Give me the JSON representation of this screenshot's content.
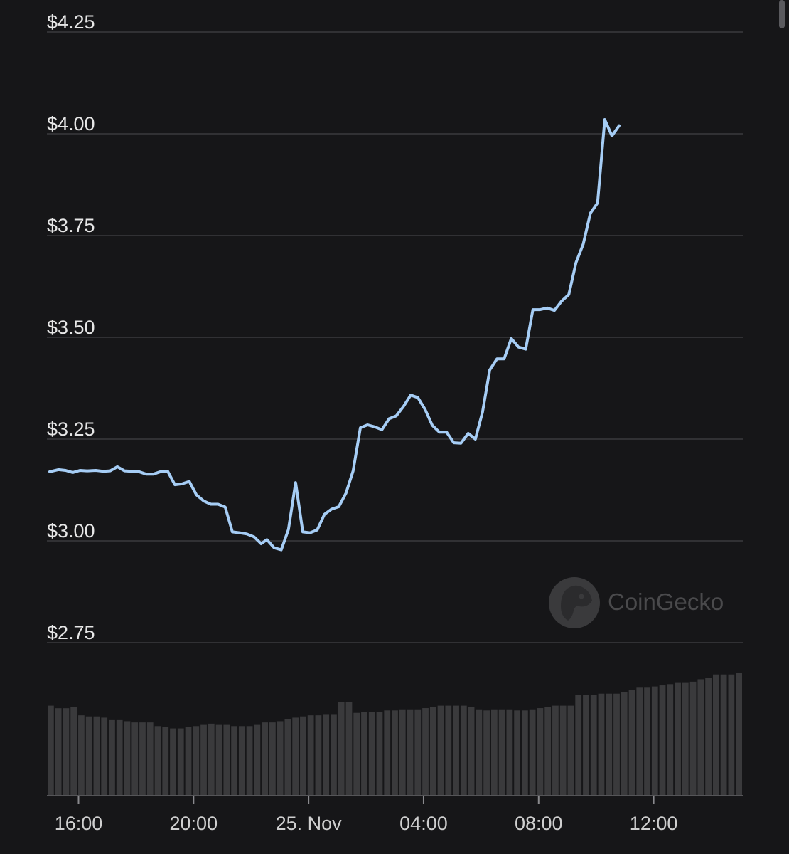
{
  "chart_data": {
    "type": "line",
    "y_axis": {
      "ticks": [
        {
          "value": 4.25,
          "label": "$4.25"
        },
        {
          "value": 4.0,
          "label": "$4.00"
        },
        {
          "value": 3.75,
          "label": "$3.75"
        },
        {
          "value": 3.5,
          "label": "$3.50"
        },
        {
          "value": 3.25,
          "label": "$3.25"
        },
        {
          "value": 3.0,
          "label": "$3.00"
        },
        {
          "value": 2.75,
          "label": "$2.75"
        }
      ],
      "range": [
        2.75,
        4.25
      ],
      "grid": true
    },
    "x_axis": {
      "range_hours": [
        14.9,
        39.1
      ],
      "ticks": [
        {
          "value": 16,
          "label": "16:00"
        },
        {
          "value": 20,
          "label": "20:00"
        },
        {
          "value": 24,
          "label": "25. Nov"
        },
        {
          "value": 28,
          "label": "04:00"
        },
        {
          "value": 32,
          "label": "08:00"
        },
        {
          "value": 36,
          "label": "12:00"
        }
      ]
    },
    "series": [
      {
        "line_color": "#a6cdf5",
        "points": [
          [
            15.0,
            3.17
          ],
          [
            15.3,
            3.175
          ],
          [
            15.55,
            3.173
          ],
          [
            15.8,
            3.168
          ],
          [
            16.05,
            3.173
          ],
          [
            16.3,
            3.172
          ],
          [
            16.6,
            3.173
          ],
          [
            16.85,
            3.171
          ],
          [
            17.1,
            3.172
          ],
          [
            17.35,
            3.182
          ],
          [
            17.6,
            3.172
          ],
          [
            17.85,
            3.171
          ],
          [
            18.1,
            3.17
          ],
          [
            18.35,
            3.164
          ],
          [
            18.6,
            3.164
          ],
          [
            18.85,
            3.17
          ],
          [
            19.1,
            3.171
          ],
          [
            19.35,
            3.138
          ],
          [
            19.6,
            3.14
          ],
          [
            19.85,
            3.146
          ],
          [
            20.1,
            3.113
          ],
          [
            20.35,
            3.098
          ],
          [
            20.6,
            3.09
          ],
          [
            20.85,
            3.09
          ],
          [
            21.1,
            3.083
          ],
          [
            21.35,
            3.022
          ],
          [
            21.6,
            3.02
          ],
          [
            21.85,
            3.017
          ],
          [
            22.1,
            3.01
          ],
          [
            22.35,
            2.993
          ],
          [
            22.55,
            3.003
          ],
          [
            22.8,
            2.983
          ],
          [
            23.05,
            2.978
          ],
          [
            23.3,
            3.028
          ],
          [
            23.55,
            3.143
          ],
          [
            23.8,
            3.022
          ],
          [
            24.05,
            3.02
          ],
          [
            24.3,
            3.027
          ],
          [
            24.55,
            3.065
          ],
          [
            24.8,
            3.078
          ],
          [
            25.05,
            3.084
          ],
          [
            25.3,
            3.117
          ],
          [
            25.55,
            3.172
          ],
          [
            25.8,
            3.278
          ],
          [
            26.05,
            3.285
          ],
          [
            26.3,
            3.28
          ],
          [
            26.55,
            3.273
          ],
          [
            26.8,
            3.3
          ],
          [
            27.05,
            3.307
          ],
          [
            27.3,
            3.33
          ],
          [
            27.55,
            3.358
          ],
          [
            27.8,
            3.352
          ],
          [
            28.05,
            3.323
          ],
          [
            28.3,
            3.284
          ],
          [
            28.55,
            3.267
          ],
          [
            28.8,
            3.267
          ],
          [
            29.05,
            3.241
          ],
          [
            29.3,
            3.24
          ],
          [
            29.55,
            3.264
          ],
          [
            29.8,
            3.25
          ],
          [
            30.05,
            3.317
          ],
          [
            30.3,
            3.42
          ],
          [
            30.55,
            3.447
          ],
          [
            30.8,
            3.447
          ],
          [
            31.05,
            3.497
          ],
          [
            31.3,
            3.476
          ],
          [
            31.55,
            3.471
          ],
          [
            31.8,
            3.568
          ],
          [
            32.05,
            3.568
          ],
          [
            32.3,
            3.572
          ],
          [
            32.55,
            3.566
          ],
          [
            32.8,
            3.589
          ],
          [
            33.05,
            3.605
          ],
          [
            33.3,
            3.684
          ],
          [
            33.55,
            3.729
          ],
          [
            33.8,
            3.805
          ],
          [
            34.05,
            3.83
          ],
          [
            34.3,
            4.035
          ],
          [
            34.55,
            3.995
          ],
          [
            34.8,
            4.02
          ]
        ]
      }
    ],
    "volume_bars": {
      "bar_color": "#3a3a3c",
      "relative_values": [
        0.735,
        0.714,
        0.714,
        0.725,
        0.656,
        0.647,
        0.647,
        0.637,
        0.617,
        0.617,
        0.608,
        0.598,
        0.598,
        0.598,
        0.568,
        0.559,
        0.549,
        0.549,
        0.559,
        0.568,
        0.578,
        0.588,
        0.578,
        0.578,
        0.568,
        0.568,
        0.568,
        0.578,
        0.598,
        0.598,
        0.608,
        0.627,
        0.637,
        0.647,
        0.656,
        0.656,
        0.666,
        0.666,
        0.764,
        0.764,
        0.676,
        0.686,
        0.686,
        0.686,
        0.696,
        0.696,
        0.705,
        0.705,
        0.705,
        0.715,
        0.725,
        0.735,
        0.735,
        0.735,
        0.735,
        0.725,
        0.705,
        0.696,
        0.705,
        0.705,
        0.705,
        0.696,
        0.696,
        0.705,
        0.715,
        0.725,
        0.735,
        0.735,
        0.735,
        0.823,
        0.823,
        0.823,
        0.833,
        0.833,
        0.833,
        0.843,
        0.862,
        0.882,
        0.882,
        0.892,
        0.901,
        0.911,
        0.921,
        0.921,
        0.931,
        0.951,
        0.961,
        0.99,
        0.99,
        0.99,
        1.0
      ]
    },
    "watermark": "CoinGecko"
  }
}
